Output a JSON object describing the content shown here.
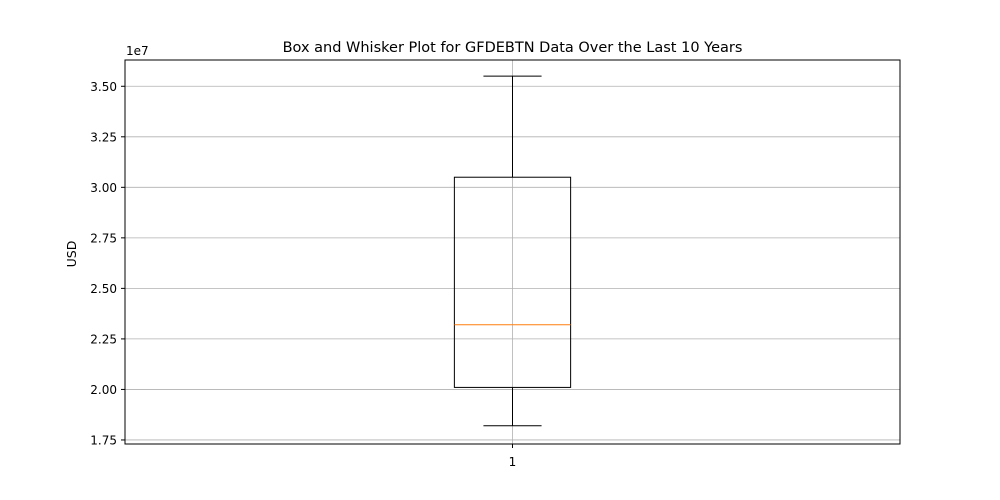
{
  "chart_data": {
    "type": "box",
    "title": "Box and Whisker Plot for GFDEBTN Data Over the Last 10 Years",
    "xlabel": "",
    "ylabel": "USD",
    "offset_text": "1e7",
    "categories": [
      "1"
    ],
    "boxes": [
      {
        "label": "1",
        "whisker_low": 18200000,
        "q1": 20100000,
        "median": 23200000,
        "q3": 30500000,
        "whisker_high": 35500000
      }
    ],
    "ylim": [
      17300000,
      36300000
    ],
    "yticks": [
      17500000,
      20000000,
      22500000,
      25000000,
      27500000,
      30000000,
      32500000,
      35000000
    ],
    "ytick_labels": [
      "1.75",
      "2.00",
      "2.25",
      "2.50",
      "2.75",
      "3.00",
      "3.25",
      "3.50"
    ],
    "grid": true,
    "colors": {
      "box": "#000000",
      "median": "#ff7f0e",
      "grid": "#b0b0b0"
    }
  }
}
